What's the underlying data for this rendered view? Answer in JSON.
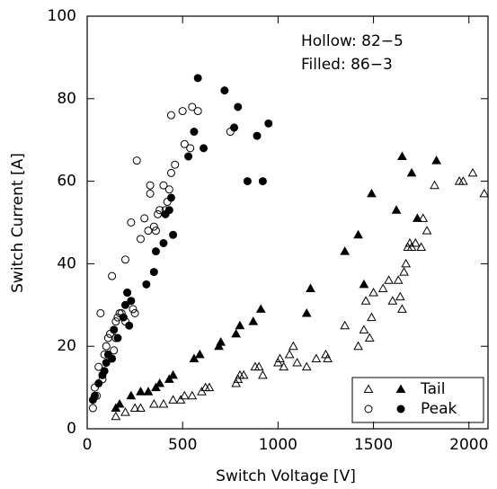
{
  "chart_data": {
    "type": "scatter",
    "xlabel": "Switch Voltage [V]",
    "ylabel": "Switch Current [A]",
    "annotations": [
      "Hollow: 82−5",
      "Filled: 86−3"
    ],
    "xlim": [
      0,
      2100
    ],
    "ylim": [
      0,
      100
    ],
    "xticks": [
      0,
      500,
      1000,
      1500,
      2000
    ],
    "yticks": [
      0,
      20,
      40,
      60,
      80,
      100
    ],
    "legend": "lower right",
    "color": "#000000",
    "series": [
      {
        "name": "Tail",
        "marker": "triangle",
        "groups": [
          {
            "filled": false,
            "x": [
              150,
              200,
              250,
              280,
              350,
              400,
              450,
              490,
              510,
              550,
              600,
              620,
              640,
              780,
              790,
              800,
              820,
              880,
              900,
              920,
              1000,
              1010,
              1030,
              1060,
              1080,
              1100,
              1150,
              1200,
              1250,
              1260,
              1350,
              1420,
              1450,
              1460,
              1480,
              1490,
              1500,
              1550,
              1580,
              1600,
              1630,
              1640,
              1650,
              1660,
              1670,
              1680,
              1690,
              1700,
              1720,
              1750,
              1760,
              1780,
              1820,
              1950,
              1970,
              2020,
              2080
            ],
            "values": [
              3,
              4,
              5,
              5,
              6,
              6,
              7,
              7,
              8,
              8,
              9,
              10,
              10,
              11,
              12,
              13,
              13,
              15,
              15,
              13,
              16,
              17,
              15,
              18,
              20,
              16,
              15,
              17,
              18,
              17,
              25,
              20,
              24,
              31,
              22,
              27,
              33,
              34,
              36,
              31,
              36,
              32,
              29,
              38,
              40,
              44,
              45,
              44,
              45,
              44,
              51,
              48,
              59,
              60,
              60,
              62,
              57
            ]
          },
          {
            "filled": true,
            "x": [
              150,
              170,
              230,
              280,
              320,
              360,
              380,
              430,
              450,
              560,
              590,
              690,
              700,
              780,
              800,
              870,
              910,
              1150,
              1170,
              1350,
              1420,
              1450,
              1490,
              1620,
              1650,
              1700,
              1730,
              1830
            ],
            "values": [
              5,
              6,
              8,
              9,
              9,
              10,
              11,
              12,
              13,
              17,
              18,
              20,
              21,
              23,
              25,
              26,
              29,
              28,
              34,
              43,
              47,
              35,
              57,
              53,
              66,
              62,
              51,
              65
            ]
          }
        ]
      },
      {
        "name": "Peak",
        "marker": "circle",
        "groups": [
          {
            "filled": false,
            "x": [
              30,
              40,
              50,
              60,
              70,
              80,
              90,
              100,
              110,
              120,
              130,
              140,
              150,
              150,
              160,
              170,
              180,
              200,
              200,
              210,
              230,
              240,
              250,
              260,
              280,
              300,
              320,
              330,
              330,
              350,
              360,
              370,
              380,
              400,
              410,
              420,
              430,
              440,
              440,
              460,
              500,
              510,
              540,
              550,
              580,
              750
            ],
            "values": [
              5,
              10,
              8,
              15,
              28,
              12,
              18,
              20,
              22,
              23,
              37,
              19,
              26,
              22,
              27,
              28,
              28,
              26,
              41,
              33,
              50,
              29,
              28,
              65,
              46,
              51,
              48,
              57,
              59,
              49,
              48,
              52,
              53,
              59,
              53,
              55,
              58,
              62,
              76,
              64,
              77,
              69,
              68,
              78,
              77,
              72
            ]
          },
          {
            "filled": true,
            "x": [
              30,
              40,
              60,
              80,
              90,
              100,
              110,
              130,
              140,
              160,
              190,
              200,
              210,
              220,
              230,
              310,
              350,
              360,
              400,
              410,
              430,
              440,
              450,
              530,
              560,
              580,
              610,
              720,
              770,
              790,
              840,
              890,
              920,
              950
            ],
            "values": [
              7,
              8,
              11,
              13,
              14,
              16,
              18,
              17,
              24,
              22,
              27,
              30,
              33,
              25,
              31,
              35,
              38,
              43,
              45,
              52,
              53,
              56,
              47,
              66,
              72,
              85,
              68,
              82,
              73,
              78,
              60,
              71,
              60,
              74
            ]
          }
        ]
      }
    ]
  }
}
